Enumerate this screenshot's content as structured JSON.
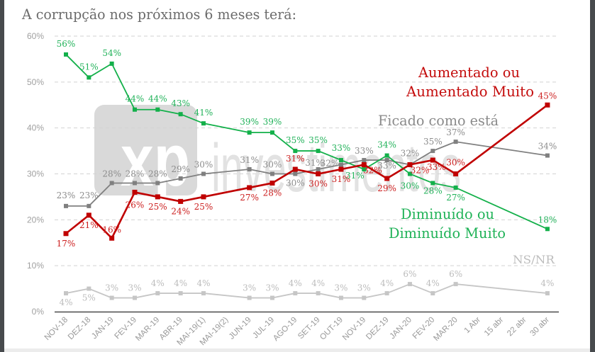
{
  "title": "A corrupção nos próximos 6 meses terá:",
  "watermark": {
    "brand": "xp",
    "wordmark": "investimentos"
  },
  "legend": {
    "aumentado": [
      "Aumentado ou",
      "Aumentado Muito"
    ],
    "ficado": "Ficado como está",
    "diminuido": [
      "Diminuído ou",
      "Diminuído Muito"
    ],
    "nsnr": "NS/NR"
  },
  "chart_data": {
    "type": "line",
    "title": "A corrupção nos próximos 6 meses terá:",
    "xlabel": "",
    "ylabel": "",
    "ylim": [
      0,
      60
    ],
    "ytick_values": [
      0,
      10,
      20,
      30,
      40,
      50,
      60
    ],
    "ytick_labels": [
      "0%",
      "10%",
      "20%",
      "30%",
      "40%",
      "50%",
      "60%"
    ],
    "grid": true,
    "legend": "inline-right",
    "value_suffix": "%",
    "categories": [
      "NOV-18",
      "DEZ-18",
      "JAN-19",
      "FEV-19",
      "MAR-19",
      "ABR-19",
      "MAI-19(1)",
      "MAI-19(2)",
      "JUN-19",
      "JUL-19",
      "AGO-19",
      "SET-19",
      "OUT-19",
      "NOV-19",
      "DEZ-19",
      "JAN-20",
      "FEV-20",
      "MAR-20",
      "1 Abr",
      "15 abr",
      "22 abr",
      "30 abr"
    ],
    "series": [
      {
        "name": "Aumentado ou Aumentado Muito",
        "color": "#c00000",
        "label_color": "#cc1f1f",
        "values": [
          17,
          21,
          16,
          26,
          25,
          24,
          25,
          null,
          27,
          28,
          31,
          30,
          31,
          32,
          29,
          32,
          33,
          30,
          null,
          null,
          null,
          45
        ]
      },
      {
        "name": "Ficado como está",
        "color": "#808080",
        "label_color": "#8c8c8c",
        "values": [
          23,
          23,
          28,
          28,
          28,
          29,
          30,
          null,
          31,
          30,
          30,
          31,
          32,
          33,
          33,
          32,
          35,
          37,
          null,
          null,
          null,
          34
        ]
      },
      {
        "name": "Diminuído ou Diminuído Muito",
        "color": "#13b04a",
        "label_color": "#22b25a",
        "values": [
          56,
          51,
          54,
          44,
          44,
          43,
          41,
          null,
          39,
          39,
          35,
          35,
          33,
          31,
          34,
          30,
          28,
          27,
          null,
          null,
          null,
          18
        ]
      },
      {
        "name": "NS/NR",
        "color": "#c6c6c6",
        "label_color": "#bcbcbc",
        "values": [
          4,
          5,
          3,
          3,
          4,
          4,
          4,
          null,
          3,
          3,
          4,
          4,
          3,
          3,
          4,
          6,
          4,
          6,
          null,
          null,
          null,
          4
        ]
      }
    ]
  }
}
